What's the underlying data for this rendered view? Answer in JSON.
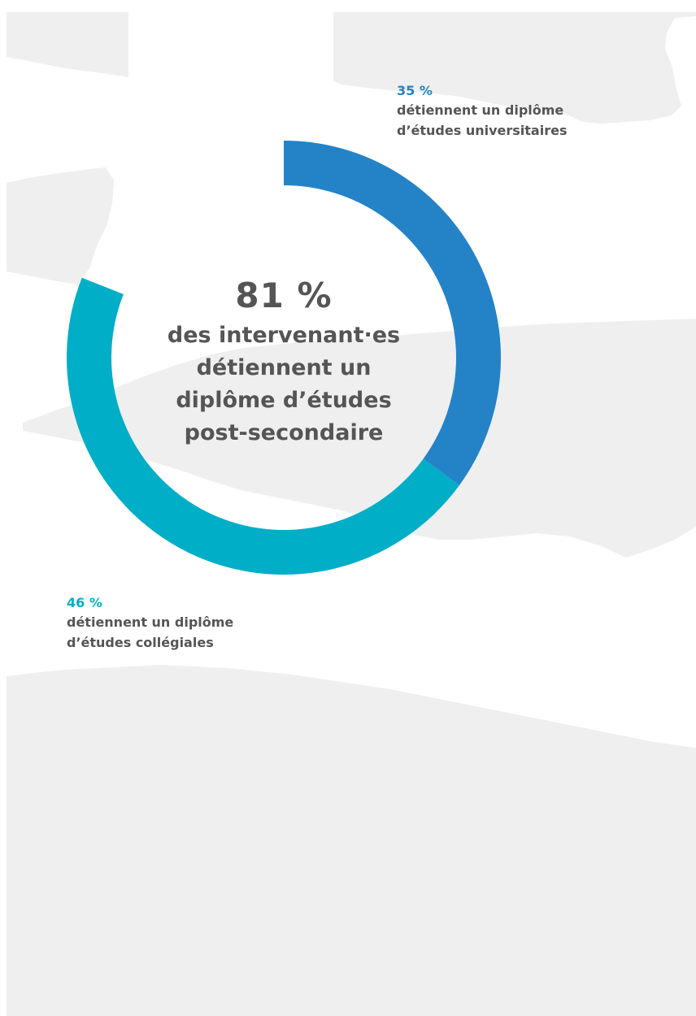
{
  "colors": {
    "university": "#2483c7",
    "college": "#00aec8",
    "text": "#555555",
    "background_shape": "#efefef"
  },
  "center": {
    "value": "81 %",
    "caption_lines": [
      "des intervenant·es",
      "détiennent un",
      "diplôme d’études",
      "post-secondaire"
    ]
  },
  "labels": {
    "university": {
      "value": "35 %",
      "lines": [
        "détiennent un diplôme",
        "d’études universitaires"
      ]
    },
    "college": {
      "value": "46 %",
      "lines": [
        "détiennent un diplôme",
        "d’études collégiales"
      ]
    }
  },
  "chart_data": {
    "type": "pie",
    "title": "",
    "total_percent": 81,
    "slices": [
      {
        "label": "détiennent un diplôme d’études universitaires",
        "value": 35,
        "color": "#2483c7"
      },
      {
        "label": "détiennent un diplôme d’études collégiales",
        "value": 46,
        "color": "#00aec8"
      }
    ],
    "unfilled_percent": 19,
    "donut": true,
    "legend": "none"
  }
}
